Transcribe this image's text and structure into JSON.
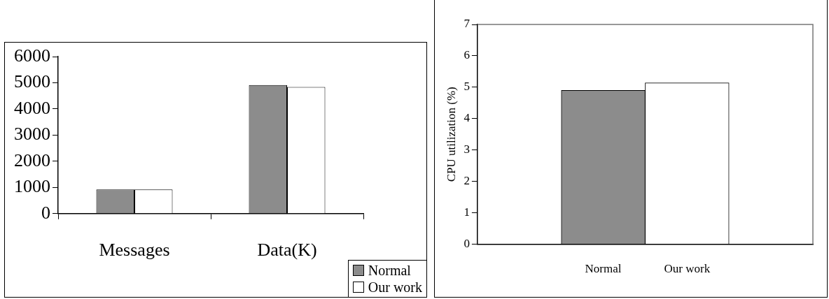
{
  "chart_data": [
    {
      "type": "bar",
      "categories": [
        "Messages",
        "Data(K)"
      ],
      "series": [
        {
          "name": "Normal",
          "color": "#8c8c8c",
          "values": [
            920,
            4910
          ]
        },
        {
          "name": "Our work",
          "color": "#ffffff",
          "values": [
            920,
            4840
          ]
        }
      ],
      "ylim": [
        0,
        6000
      ],
      "yticks": [
        0,
        1000,
        2000,
        3000,
        4000,
        5000,
        6000
      ],
      "grid": false,
      "legend": "bottom right"
    },
    {
      "type": "bar",
      "categories": [
        "Normal",
        "Our work"
      ],
      "values": [
        4.9,
        5.14
      ],
      "colors": [
        "#8c8c8c",
        "#ffffff"
      ],
      "ylabel": "CPU utilization (%)",
      "ylim": [
        0,
        7
      ],
      "yticks": [
        0,
        1,
        2,
        3,
        4,
        5,
        6,
        7
      ],
      "grid": false
    }
  ]
}
